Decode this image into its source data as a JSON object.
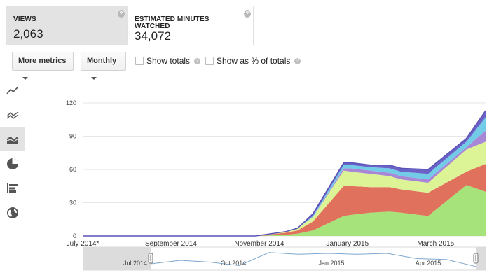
{
  "metrics": [
    {
      "label_lines": [
        "VIEWS"
      ],
      "value": "2,063",
      "selected": true
    },
    {
      "label_lines": [
        "ESTIMATED MINUTES",
        "WATCHED"
      ],
      "value": "34,072",
      "selected": false
    }
  ],
  "help_glyph": "?",
  "toolbar": {
    "more_metrics": "More metrics",
    "period": "Monthly",
    "show_totals": "Show totals",
    "show_percent": "Show as % of totals"
  },
  "rail_icons": [
    "line-chart-icon",
    "multi-line-chart-icon",
    "stacked-area-chart-icon",
    "pie-chart-icon",
    "bar-chart-icon",
    "globe-map-icon"
  ],
  "rail_active_index": 2,
  "colors": {
    "series": [
      "#a6e37a",
      "#e0725d",
      "#dcf496",
      "#a887d6",
      "#72cce8",
      "#6a62c6"
    ],
    "grid": "#e6e6e6",
    "nav_line": "#7fa8cf"
  },
  "chart_data": {
    "type": "area",
    "stacked": true,
    "x": [
      0,
      3.5,
      4.5,
      5.3,
      5.6,
      6.0,
      6.8,
      7.0,
      7.5,
      8.0,
      8.3,
      9.0,
      10.0,
      10.5
    ],
    "series": [
      {
        "values": [
          0,
          0,
          0,
          1,
          2,
          5,
          18,
          19,
          21,
          22,
          21,
          18,
          46,
          40
        ]
      },
      {
        "values": [
          0,
          0,
          0,
          2,
          3,
          8,
          27,
          26,
          23,
          22,
          21,
          21,
          12,
          25
        ]
      },
      {
        "values": [
          0,
          0,
          0,
          1,
          2,
          4,
          14,
          13,
          12,
          10,
          9,
          9,
          20,
          20
        ]
      },
      {
        "values": [
          0,
          0,
          0,
          0,
          0,
          0,
          2,
          3,
          3,
          3,
          3,
          3,
          2,
          10
        ]
      },
      {
        "values": [
          0,
          0,
          0,
          0,
          0,
          1,
          3,
          3,
          3,
          4,
          4,
          5,
          5,
          12
        ]
      },
      {
        "values": [
          0,
          0,
          0,
          0,
          0,
          2,
          2,
          2,
          2,
          3,
          3,
          4,
          3,
          6
        ]
      }
    ],
    "ylim": [
      0,
      120
    ],
    "yticks": [
      0,
      30,
      60,
      90,
      120
    ],
    "xlim": [
      0,
      10.5
    ],
    "xticks": [
      {
        "x": 0,
        "label": "July 2014*"
      },
      {
        "x": 2.3,
        "label": "September 2014"
      },
      {
        "x": 4.6,
        "label": "November 2014"
      },
      {
        "x": 6.9,
        "label": "January 2015"
      },
      {
        "x": 9.2,
        "label": "March 2015"
      }
    ],
    "grid": true,
    "navigator": {
      "labels": [
        "Jul 2014",
        "Oct 2014",
        "Jan 2015",
        "Apr 2015"
      ],
      "line": [
        0.8,
        0.6,
        0.7,
        0.9,
        0.15,
        0.25,
        0.2,
        0.25,
        0.2,
        0.5,
        0.55,
        0.95
      ]
    }
  }
}
